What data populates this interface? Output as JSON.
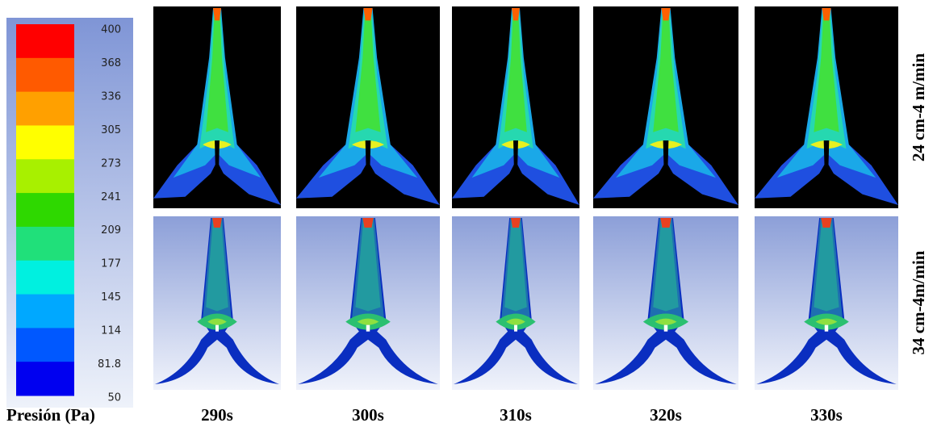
{
  "colorbar": {
    "title": "Presión (Pa)",
    "labels": [
      "400",
      "368",
      "336",
      "305",
      "273",
      "241",
      "209",
      "177",
      "145",
      "114",
      "81.8",
      "50"
    ],
    "colors": [
      "#ff0000",
      "#ff5a00",
      "#ffa000",
      "#ffff00",
      "#a8f000",
      "#2ed800",
      "#20e07a",
      "#00f0e0",
      "#00a8ff",
      "#0058ff",
      "#0000f0"
    ]
  },
  "columns": [
    "290s",
    "300s",
    "310s",
    "320s",
    "330s"
  ],
  "rows": [
    "24 cm-4 m/min",
    "34 cm-4m/min"
  ]
}
